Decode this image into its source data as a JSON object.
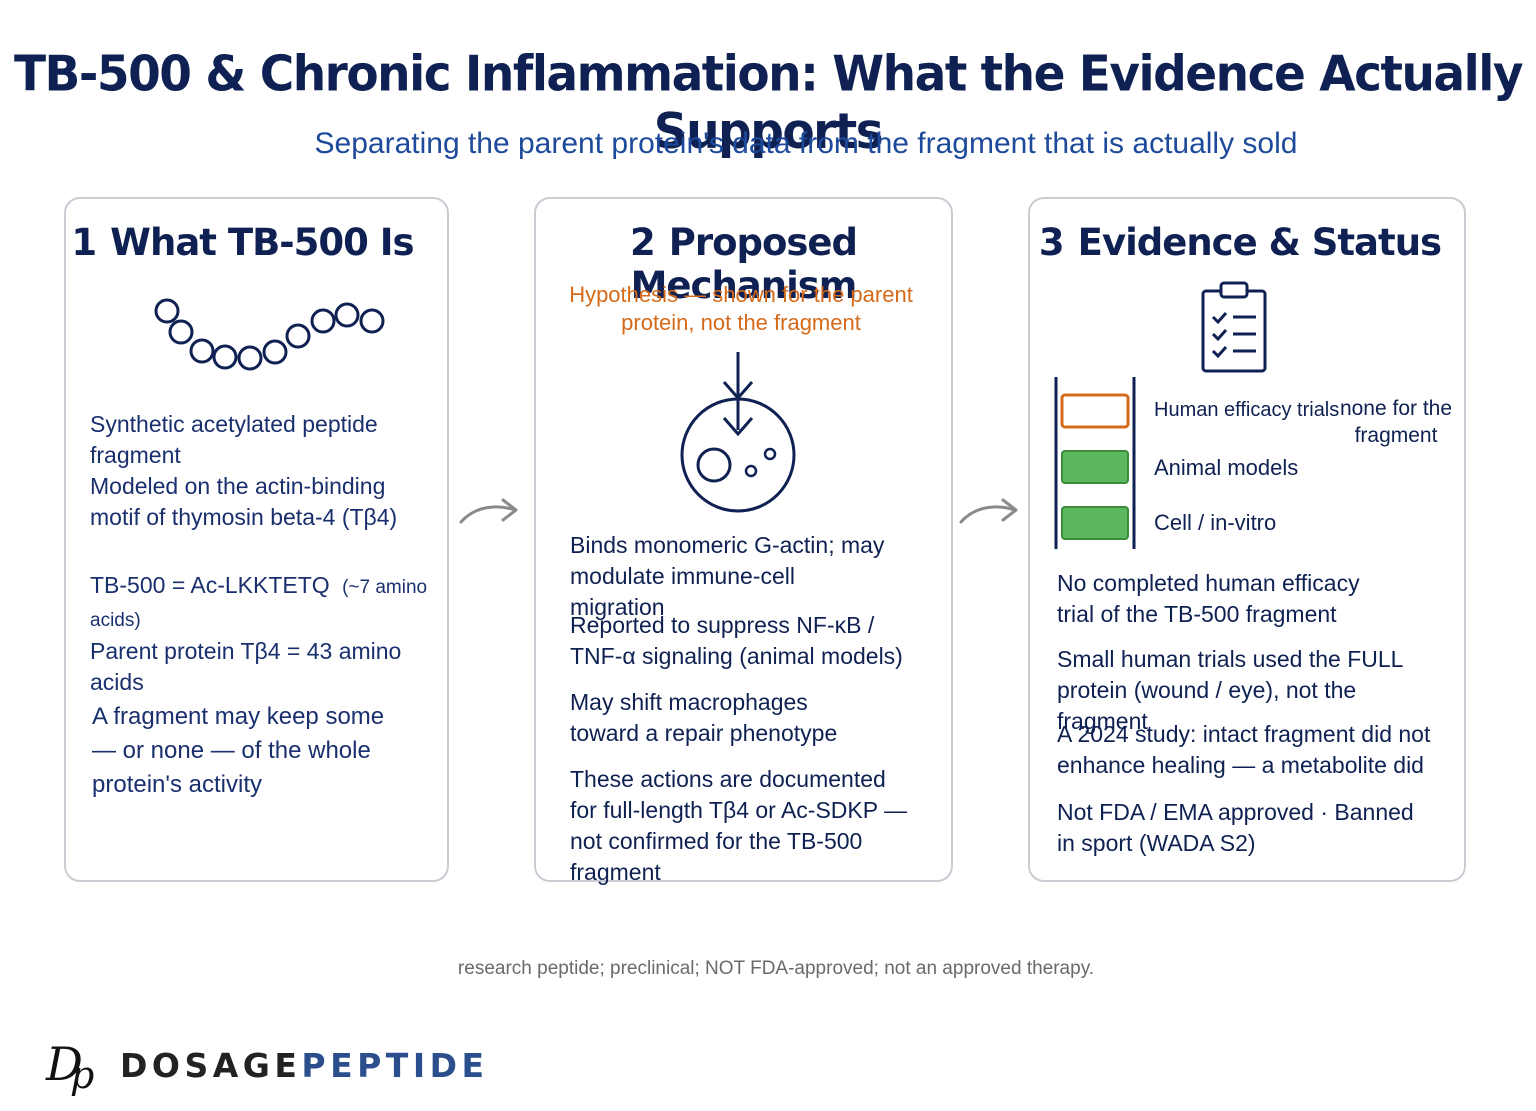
{
  "header": {
    "title": "TB-500 & Chronic Inflammation: What the Evidence Actually Supports",
    "subtitle": "Separating the parent protein's data from the fragment that is actually sold"
  },
  "cards": [
    {
      "number": "1",
      "title": "What TB-500 Is",
      "icon": "peptide-chain-icon",
      "items": [
        "Synthetic acetylated peptide fragment",
        "Modeled on the actin-binding motif of thymosin beta-4 (Tβ4)",
        "TB-500 = Ac-LKKTETQ",
        "(~7 amino acids)",
        "Parent protein Tβ4 = 43 amino acids",
        "A fragment may keep some — or none — of the whole protein's activity"
      ]
    },
    {
      "number": "2",
      "title": "Proposed Mechanism",
      "note": "Hypothesis — shown for the parent protein, not the fragment",
      "icon": "cell-binding-icon",
      "items": [
        "Binds monomeric G-actin; may modulate immune-cell migration",
        "Reported to suppress NF-κB / TNF-α signaling (animal models)",
        "May shift macrophages toward a repair phenotype",
        "These actions are documented for full-length Tβ4 or Ac-SDKP — not confirmed for the TB-500 fragment"
      ]
    },
    {
      "number": "3",
      "title": "Evidence & Status",
      "icon": "clipboard-checklist-icon",
      "ladder": [
        {
          "label": "Human efficacy trials",
          "status": "none",
          "note": "none for the fragment"
        },
        {
          "label": "Animal models",
          "status": "present"
        },
        {
          "label": "Cell / in-vitro",
          "status": "present"
        }
      ],
      "items": [
        "No completed human efficacy trial of the TB-500 fragment",
        "Small human trials used the FULL protein (wound / eye), not the fragment",
        "A 2024 study: intact fragment did not enhance healing — a metabolite did",
        "Not FDA / EMA approved · Banned in sport (WADA S2)"
      ]
    }
  ],
  "footnote": "research peptide; preclinical; NOT FDA-approved; not an approved therapy.",
  "brand": {
    "part1": "DOSAGE",
    "part2": "PEPTIDE",
    "mark": "Dp"
  },
  "colors": {
    "navy": "#0f2152",
    "blue": "#1d4a9a",
    "orange": "#d56a1a",
    "green": "#5cb85c"
  }
}
